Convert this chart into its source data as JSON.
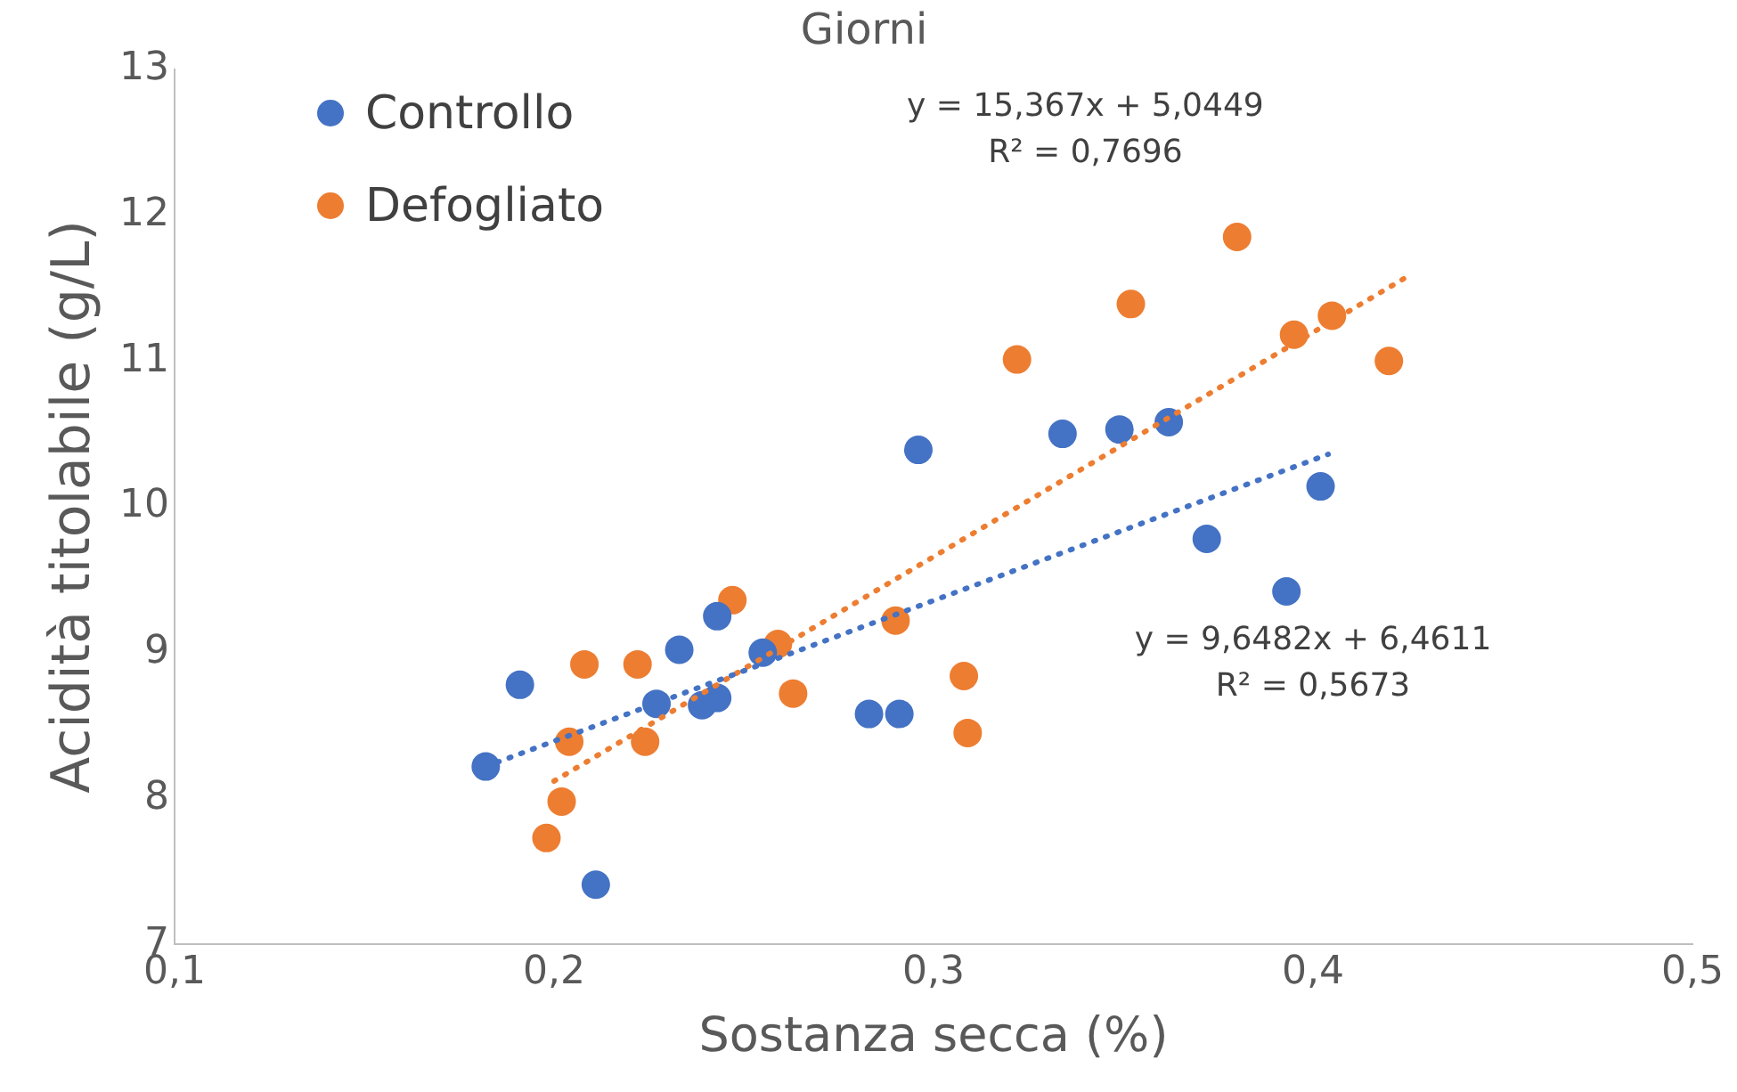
{
  "chart_data": {
    "type": "scatter",
    "title": "Giorni",
    "xlabel": "Sostanza secca (%)",
    "ylabel": "Acidità titolabile (g/L)",
    "xlim": [
      0.1,
      0.5
    ],
    "xticks": [
      {
        "value": 0.1,
        "label": "0,1"
      },
      {
        "value": 0.2,
        "label": "0,2"
      },
      {
        "value": 0.3,
        "label": "0,3"
      },
      {
        "value": 0.4,
        "label": "0,4"
      },
      {
        "value": 0.5,
        "label": "0,5"
      }
    ],
    "ylim": [
      7,
      13
    ],
    "yticks": [
      7,
      8,
      9,
      10,
      11,
      12,
      13
    ],
    "grid": false,
    "legend": "top left",
    "marker": "circle",
    "series": [
      {
        "name": "Controllo",
        "color": "#4472c4",
        "x": [
          0.182,
          0.191,
          0.211,
          0.227,
          0.233,
          0.239,
          0.243,
          0.243,
          0.255,
          0.283,
          0.291,
          0.296,
          0.334,
          0.349,
          0.362,
          0.372,
          0.393,
          0.402
        ],
        "values": [
          8.22,
          8.78,
          7.41,
          8.65,
          9.02,
          8.64,
          8.69,
          9.25,
          9.0,
          8.58,
          8.58,
          10.39,
          10.5,
          10.53,
          10.58,
          9.78,
          9.42,
          10.14
        ]
      },
      {
        "name": "Defogliato",
        "color": "#ed7d31",
        "x": [
          0.198,
          0.202,
          0.204,
          0.208,
          0.222,
          0.224,
          0.247,
          0.259,
          0.263,
          0.29,
          0.308,
          0.309,
          0.322,
          0.352,
          0.38,
          0.395,
          0.405,
          0.42
        ],
        "values": [
          7.73,
          7.98,
          8.39,
          8.92,
          8.92,
          8.39,
          9.36,
          9.06,
          8.72,
          9.22,
          8.84,
          8.45,
          11.01,
          11.39,
          11.85,
          11.18,
          11.31,
          11.0
        ]
      },
      {
        "type": "line",
        "color": "#4472c4",
        "line_style": "dotted",
        "marker": "none",
        "x": [
          0.182,
          0.404
        ],
        "values": [
          8.22,
          10.36
        ]
      },
      {
        "type": "line",
        "color": "#ed7d31",
        "line_style": "dotted",
        "marker": "none",
        "x": [
          0.2,
          0.425
        ],
        "values": [
          8.12,
          11.58
        ]
      }
    ],
    "annotations": [
      "y = 15,367x + 5,0449\nR² = 0,7696",
      "y = 9,6482x + 6,4611\nR² = 0,5673"
    ]
  }
}
